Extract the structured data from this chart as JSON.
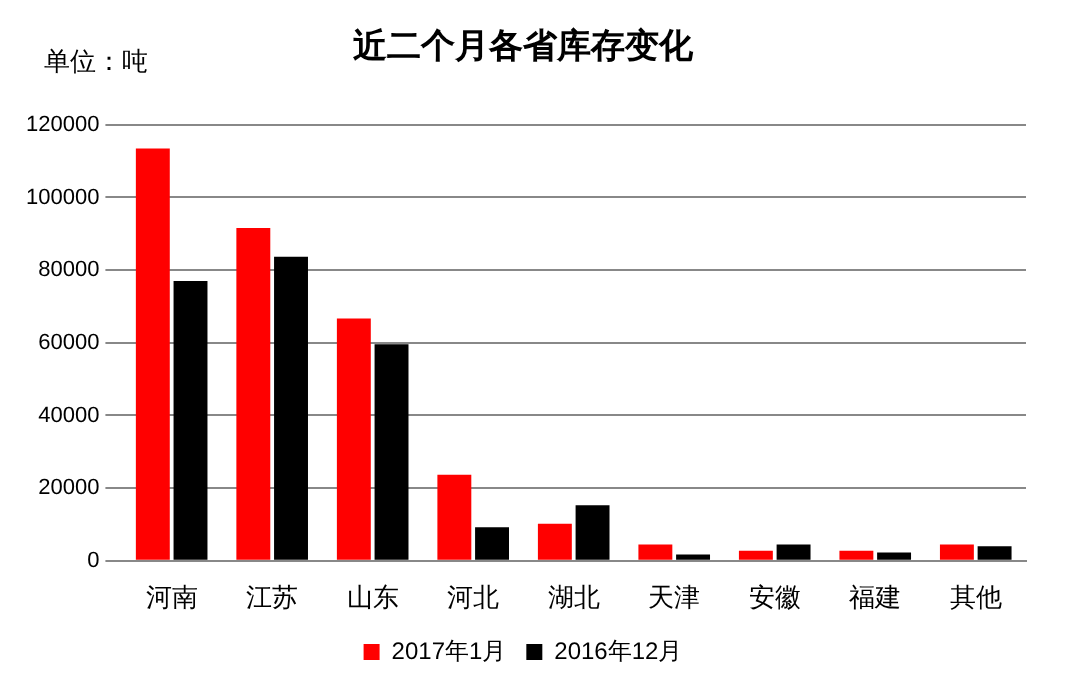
{
  "chart_data": {
    "type": "bar",
    "title": "近二个月各省库存变化",
    "annotations": [
      "单位：吨"
    ],
    "categories": [
      "河南",
      "江苏",
      "山东",
      "河北",
      "湖北",
      "天津",
      "安徽",
      "福建",
      "其他"
    ],
    "series": [
      {
        "name": "2017年1月",
        "color": "#ff0000",
        "values": [
          113500,
          91600,
          66700,
          23700,
          10200,
          4500,
          2800,
          2800,
          4500
        ]
      },
      {
        "name": "2016年12月",
        "color": "#000000",
        "values": [
          77000,
          83700,
          59600,
          9200,
          15300,
          1700,
          4500,
          2300,
          4000
        ]
      }
    ],
    "ylim": [
      0,
      120000
    ],
    "yticks": [
      0,
      20000,
      40000,
      60000,
      80000,
      100000,
      120000
    ],
    "grid": "y",
    "legend": "bottom"
  }
}
